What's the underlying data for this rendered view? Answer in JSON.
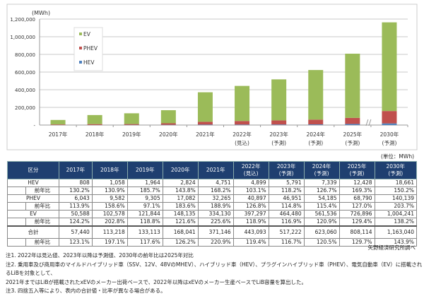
{
  "chart_data": {
    "type": "bar",
    "stacked": true,
    "ylabel": "(MWh)",
    "ylim": [
      0,
      1200000
    ],
    "yticks": [
      "-",
      "200,000",
      "400,000",
      "600,000",
      "800,000",
      "1,000,000",
      "1,200,000"
    ],
    "categories": [
      [
        "2017年",
        ""
      ],
      [
        "2018年",
        ""
      ],
      [
        "2019年",
        ""
      ],
      [
        "2020年",
        ""
      ],
      [
        "2021年",
        ""
      ],
      [
        "2022年",
        "(見込)"
      ],
      [
        "2023年",
        "(予測)"
      ],
      [
        "2024年",
        "(予測)"
      ],
      [
        "2025年",
        "(予測)"
      ],
      [
        "2030年",
        "(予測)"
      ]
    ],
    "series": [
      {
        "name": "HEV",
        "color": "#4f81bd",
        "values": [
          808,
          1058,
          1964,
          2824,
          4751,
          4899,
          5791,
          7339,
          12428,
          18661
        ]
      },
      {
        "name": "PHEV",
        "color": "#c0504d",
        "values": [
          6043,
          9582,
          9305,
          17082,
          32265,
          40897,
          46951,
          54185,
          68790,
          140139
        ]
      },
      {
        "name": "EV",
        "color": "#9bbb59",
        "values": [
          50588,
          102578,
          121844,
          148135,
          334130,
          397297,
          464480,
          561536,
          726896,
          1004241
        ]
      }
    ],
    "legend": [
      "EV",
      "PHEV",
      "HEV"
    ],
    "legend_position": "top-left",
    "grid": true,
    "axis_break_before": "2030年"
  },
  "table": {
    "unit": "(単位：MWh)",
    "header": [
      "区分",
      "2017年",
      "2018年",
      "2019年",
      "2020年",
      "2021年",
      "2022年\n(見込)",
      "2023年\n(予測)",
      "2024年\n(予測)",
      "2025年\n(予測)",
      "2030年\n(予測)"
    ],
    "rows": [
      {
        "label": "HEV",
        "values": [
          "808",
          "1,058",
          "1,964",
          "2,824",
          "4,751",
          "4,899",
          "5,791",
          "7,339",
          "12,428",
          "18,661"
        ],
        "ratio_label": "前年比",
        "ratios": [
          "130.2%",
          "130.9%",
          "185.7%",
          "143.8%",
          "168.2%",
          "103.1%",
          "118.2%",
          "126.7%",
          "169.3%",
          "150.2%"
        ]
      },
      {
        "label": "PHEV",
        "values": [
          "6,043",
          "9,582",
          "9,305",
          "17,082",
          "32,265",
          "40,897",
          "46,951",
          "54,185",
          "68,790",
          "140,139"
        ],
        "ratio_label": "前年比",
        "ratios": [
          "113.9%",
          "158.6%",
          "97.1%",
          "183.6%",
          "188.9%",
          "126.8%",
          "114.8%",
          "115.4%",
          "127.0%",
          "203.7%"
        ]
      },
      {
        "label": "EV",
        "values": [
          "50,588",
          "102,578",
          "121,844",
          "148,135",
          "334,130",
          "397,297",
          "464,480",
          "561,536",
          "726,896",
          "1,004,241"
        ],
        "ratio_label": "前年比",
        "ratios": [
          "124.2%",
          "202.8%",
          "118.8%",
          "121.6%",
          "225.6%",
          "118.9%",
          "116.9%",
          "120.9%",
          "129.4%",
          "138.2%"
        ]
      },
      {
        "label": "合計",
        "values": [
          "57,440",
          "113,218",
          "133,113",
          "168,041",
          "371,146",
          "443,093",
          "517,222",
          "623,060",
          "808,114",
          "1,163,040"
        ],
        "ratio_label": "前年比",
        "ratios": [
          "123.1%",
          "197.1%",
          "117.6%",
          "126.2%",
          "220.9%",
          "119.4%",
          "116.7%",
          "120.5%",
          "129.7%",
          "143.9%"
        ]
      }
    ]
  },
  "source": "矢野経済研究所調べ",
  "notes": [
    "注1. 2022年は見込値、2023年以降は予測値、2030年の前年比は2025年対比",
    "注2. 乗用車及び商用車のマイルドハイブリッド車（SSV、12V、48VのMHEV）、ハイブリッド車（HEV）、プラグインハイブリッド車（PHEV）、電気自動車（EV）に搭載されるLiBを対象として、",
    "2021年まではLiBが搭載されたxEVのメーカー出荷ベースで、2022年以降はxEVのメーカー生産ベースでLiB容量を算出した。",
    "注3. 四捨五入等により、表内の合計値・比率が異なる場合がある。"
  ]
}
